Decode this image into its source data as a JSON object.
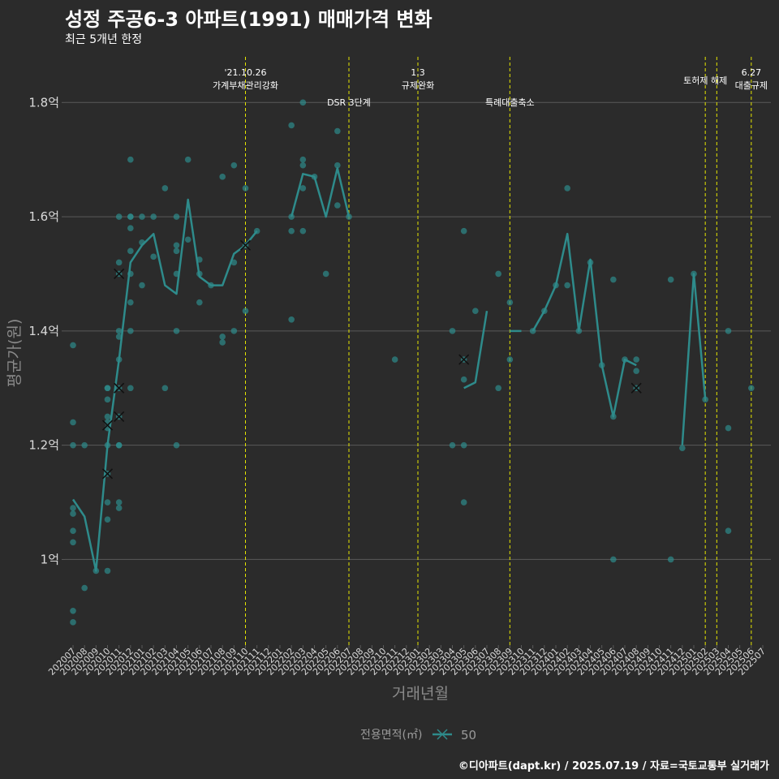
{
  "header": {
    "title": "성정 주공6-3 아파트(1991) 매매가격 변화",
    "subtitle": "최근 5개년 한정"
  },
  "footer": {
    "credit": "©디아파트(dapt.kr) / 2025.07.19 / 자료=국토교통부 실거래가"
  },
  "colors": {
    "background": "#2b2b2b",
    "series": "#2e8b8b",
    "event_line": "#e6e600",
    "grid": "#5a5a5a",
    "text": "#d9d9d9"
  },
  "chart_data": {
    "type": "line",
    "xlabel": "거래년월",
    "ylabel": "평균가(원)",
    "ylim": [
      0.85,
      1.88
    ],
    "yticks": [
      {
        "value": 1.0,
        "label": "1억"
      },
      {
        "value": 1.2,
        "label": "1.2억"
      },
      {
        "value": 1.4,
        "label": "1.4억"
      },
      {
        "value": 1.6,
        "label": "1.6억"
      },
      {
        "value": 1.8,
        "label": "1.8억"
      }
    ],
    "categories": [
      "202007",
      "202008",
      "202009",
      "202010",
      "202011",
      "202012",
      "202101",
      "202102",
      "202103",
      "202104",
      "202105",
      "202106",
      "202107",
      "202108",
      "202109",
      "202110",
      "202111",
      "202112",
      "202201",
      "202202",
      "202203",
      "202204",
      "202205",
      "202206",
      "202207",
      "202208",
      "202209",
      "202210",
      "202211",
      "202212",
      "202301",
      "202302",
      "202303",
      "202304",
      "202305",
      "202306",
      "202307",
      "202308",
      "202309",
      "202310",
      "202311",
      "202312",
      "202401",
      "202402",
      "202403",
      "202404",
      "202405",
      "202406",
      "202407",
      "202408",
      "202409",
      "202410",
      "202411",
      "202412",
      "202501",
      "202502",
      "202503",
      "202504",
      "202505",
      "202506",
      "202507"
    ],
    "legend": {
      "title": "전용면적(㎡)",
      "entries": [
        "50"
      ]
    },
    "series": [
      {
        "name": "50",
        "average_line": [
          [
            [
              0,
              1.105
            ],
            [
              1,
              1.075
            ],
            [
              2,
              0.98
            ],
            [
              3,
              1.2
            ],
            [
              4,
              1.35
            ],
            [
              5,
              1.52
            ],
            [
              6,
              1.55
            ],
            [
              7,
              1.57
            ],
            [
              8,
              1.48
            ],
            [
              9,
              1.465
            ],
            [
              10,
              1.63
            ],
            [
              11,
              1.495
            ],
            [
              12,
              1.48
            ],
            [
              13,
              1.48
            ],
            [
              14,
              1.535
            ],
            [
              15,
              1.55
            ],
            [
              16,
              1.575
            ]
          ],
          [
            [
              19,
              1.6
            ],
            [
              20,
              1.675
            ],
            [
              21,
              1.67
            ],
            [
              22,
              1.6
            ],
            [
              23,
              1.685
            ],
            [
              24,
              1.6
            ]
          ],
          [
            [
              34,
              1.3
            ],
            [
              35,
              1.31
            ],
            [
              36,
              1.435
            ]
          ],
          [
            [
              38,
              1.4
            ],
            [
              39,
              1.4
            ]
          ],
          [
            [
              40,
              1.4
            ],
            [
              41,
              1.435
            ],
            [
              42,
              1.48
            ],
            [
              43,
              1.57
            ],
            [
              44,
              1.4
            ],
            [
              45,
              1.525
            ],
            [
              46,
              1.34
            ],
            [
              47,
              1.25
            ],
            [
              48,
              1.35
            ],
            [
              49,
              1.34
            ]
          ],
          [
            [
              53,
              1.2
            ],
            [
              54,
              1.5
            ],
            [
              55,
              1.28
            ]
          ]
        ],
        "trades": [
          [
            0,
            1.24
          ],
          [
            0,
            1.2
          ],
          [
            0,
            1.09
          ],
          [
            0,
            1.08
          ],
          [
            0,
            1.05
          ],
          [
            0,
            1.03
          ],
          [
            0,
            0.91
          ],
          [
            0,
            0.89
          ],
          [
            0,
            1.375
          ],
          [
            1,
            1.2
          ],
          [
            1,
            0.95
          ],
          [
            2,
            0.98
          ],
          [
            3,
            1.3
          ],
          [
            3,
            1.3
          ],
          [
            3,
            1.28
          ],
          [
            3,
            1.25
          ],
          [
            3,
            1.24
          ],
          [
            3,
            1.23
          ],
          [
            3,
            1.2
          ],
          [
            3,
            1.15
          ],
          [
            3,
            1.1
          ],
          [
            3,
            1.07
          ],
          [
            3,
            0.98
          ],
          [
            4,
            1.6
          ],
          [
            4,
            1.52
          ],
          [
            4,
            1.5
          ],
          [
            4,
            1.4
          ],
          [
            4,
            1.39
          ],
          [
            4,
            1.35
          ],
          [
            4,
            1.3
          ],
          [
            4,
            1.25
          ],
          [
            4,
            1.2
          ],
          [
            4,
            1.2
          ],
          [
            4,
            1.1
          ],
          [
            4,
            1.09
          ],
          [
            5,
            1.7
          ],
          [
            5,
            1.6
          ],
          [
            5,
            1.6
          ],
          [
            5,
            1.58
          ],
          [
            5,
            1.54
          ],
          [
            5,
            1.5
          ],
          [
            5,
            1.45
          ],
          [
            5,
            1.4
          ],
          [
            5,
            1.3
          ],
          [
            6,
            1.6
          ],
          [
            6,
            1.555
          ],
          [
            6,
            1.48
          ],
          [
            7,
            1.6
          ],
          [
            7,
            1.53
          ],
          [
            8,
            1.65
          ],
          [
            8,
            1.3
          ],
          [
            9,
            1.6
          ],
          [
            9,
            1.55
          ],
          [
            9,
            1.54
          ],
          [
            9,
            1.5
          ],
          [
            9,
            1.4
          ],
          [
            9,
            1.2
          ],
          [
            10,
            1.7
          ],
          [
            10,
            1.56
          ],
          [
            11,
            1.525
          ],
          [
            11,
            1.5
          ],
          [
            11,
            1.45
          ],
          [
            12,
            1.48
          ],
          [
            13,
            1.67
          ],
          [
            13,
            1.39
          ],
          [
            13,
            1.38
          ],
          [
            14,
            1.69
          ],
          [
            14,
            1.52
          ],
          [
            14,
            1.4
          ],
          [
            15,
            1.65
          ],
          [
            15,
            1.55
          ],
          [
            15,
            1.435
          ],
          [
            16,
            1.575
          ],
          [
            19,
            1.76
          ],
          [
            19,
            1.6
          ],
          [
            19,
            1.575
          ],
          [
            19,
            1.42
          ],
          [
            20,
            1.8
          ],
          [
            20,
            1.7
          ],
          [
            20,
            1.69
          ],
          [
            20,
            1.65
          ],
          [
            20,
            1.575
          ],
          [
            21,
            1.67
          ],
          [
            22,
            1.5
          ],
          [
            23,
            1.75
          ],
          [
            23,
            1.69
          ],
          [
            23,
            1.62
          ],
          [
            24,
            1.6
          ],
          [
            28,
            1.35
          ],
          [
            33,
            1.4
          ],
          [
            33,
            1.2
          ],
          [
            34,
            1.575
          ],
          [
            34,
            1.35
          ],
          [
            34,
            1.315
          ],
          [
            34,
            1.2
          ],
          [
            34,
            1.1
          ],
          [
            35,
            1.435
          ],
          [
            37,
            1.5
          ],
          [
            37,
            1.3
          ],
          [
            38,
            1.45
          ],
          [
            38,
            1.35
          ],
          [
            40,
            1.4
          ],
          [
            41,
            1.435
          ],
          [
            42,
            1.48
          ],
          [
            43,
            1.65
          ],
          [
            43,
            1.48
          ],
          [
            44,
            1.4
          ],
          [
            45,
            1.52
          ],
          [
            46,
            1.34
          ],
          [
            47,
            1.49
          ],
          [
            47,
            1.25
          ],
          [
            47,
            1.0
          ],
          [
            48,
            1.35
          ],
          [
            49,
            1.35
          ],
          [
            49,
            1.3
          ],
          [
            49,
            1.33
          ],
          [
            52,
            1.49
          ],
          [
            52,
            1.0
          ],
          [
            53,
            1.195
          ],
          [
            54,
            1.5
          ],
          [
            55,
            1.28
          ],
          [
            57,
            1.4
          ],
          [
            57,
            1.23
          ],
          [
            57,
            1.05
          ],
          [
            59,
            1.3
          ]
        ],
        "cancelled_trades": [
          [
            4,
            1.5
          ],
          [
            4,
            1.3
          ],
          [
            4,
            1.25
          ],
          [
            3,
            1.235
          ],
          [
            3,
            1.15
          ],
          [
            15,
            1.55
          ],
          [
            34,
            1.35
          ],
          [
            49,
            1.3
          ]
        ]
      }
    ],
    "events": [
      {
        "x": 15,
        "label": "'21.10.26",
        "label2": "가계부채관리강화"
      },
      {
        "x": 24,
        "label": "DSR 3단계",
        "label2": ""
      },
      {
        "x": 30,
        "label": "1.3",
        "label2": "규제완화"
      },
      {
        "x": 38,
        "label": "특례대출축소",
        "label2": ""
      },
      {
        "x": 55,
        "label": "토허제 해제",
        "label2": ""
      },
      {
        "x": 56,
        "label": "",
        "label2": ""
      },
      {
        "x": 59,
        "label": "6.27",
        "label2": "대출규제"
      }
    ]
  }
}
